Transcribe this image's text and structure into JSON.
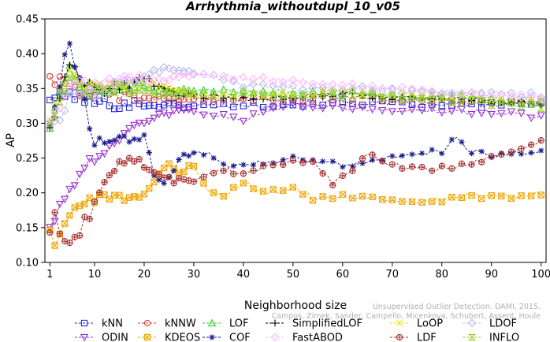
{
  "chart_data": {
    "type": "line",
    "title": "Arrhythmia_withoutdupl_10_v05",
    "xlabel": "Neighborhood size",
    "ylabel": "AP",
    "xlim": [
      0,
      101
    ],
    "ylim": [
      0.1,
      0.45
    ],
    "x_ticks": [
      1,
      10,
      20,
      30,
      40,
      50,
      60,
      70,
      80,
      90,
      100
    ],
    "y_ticks": [
      0.1,
      0.15,
      0.2,
      0.25,
      0.3,
      0.35,
      0.4,
      0.45
    ],
    "x_tick_labels": [
      "1",
      "10",
      "20",
      "30",
      "40",
      "50",
      "60",
      "70",
      "80",
      "90",
      "100"
    ],
    "y_tick_labels": [
      "0.10",
      "0.15",
      "0.20",
      "0.25",
      "0.30",
      "0.35",
      "0.40",
      "0.45"
    ],
    "legend_position": "bottom",
    "series": [
      {
        "name": "kNN",
        "color": "#2b2bd6",
        "marker": "square",
        "keys": [
          [
            1,
            0.337
          ],
          [
            3,
            0.338
          ],
          [
            5,
            0.342
          ],
          [
            8,
            0.335
          ],
          [
            10,
            0.33
          ],
          [
            15,
            0.328
          ],
          [
            20,
            0.327
          ],
          [
            30,
            0.325
          ],
          [
            40,
            0.326
          ],
          [
            50,
            0.328
          ],
          [
            60,
            0.33
          ],
          [
            70,
            0.328
          ],
          [
            80,
            0.325
          ],
          [
            90,
            0.327
          ],
          [
            100,
            0.328
          ]
        ]
      },
      {
        "name": "kNNW",
        "color": "#d63a3a",
        "marker": "circle",
        "keys": [
          [
            1,
            0.365
          ],
          [
            3,
            0.36
          ],
          [
            5,
            0.352
          ],
          [
            8,
            0.345
          ],
          [
            10,
            0.34
          ],
          [
            15,
            0.338
          ],
          [
            20,
            0.336
          ],
          [
            30,
            0.334
          ],
          [
            40,
            0.335
          ],
          [
            50,
            0.336
          ],
          [
            60,
            0.337
          ],
          [
            70,
            0.336
          ],
          [
            80,
            0.334
          ],
          [
            90,
            0.332
          ],
          [
            100,
            0.33
          ]
        ]
      },
      {
        "name": "LOF",
        "color": "#33cc33",
        "marker": "triangle-up",
        "keys": [
          [
            1,
            0.3
          ],
          [
            3,
            0.34
          ],
          [
            5,
            0.375
          ],
          [
            8,
            0.355
          ],
          [
            10,
            0.35
          ],
          [
            15,
            0.352
          ],
          [
            20,
            0.35
          ],
          [
            30,
            0.345
          ],
          [
            40,
            0.346
          ],
          [
            50,
            0.345
          ],
          [
            60,
            0.344
          ],
          [
            70,
            0.34
          ],
          [
            80,
            0.338
          ],
          [
            90,
            0.334
          ],
          [
            100,
            0.33
          ]
        ]
      },
      {
        "name": "SimplifiedLOF",
        "color": "#000000",
        "marker": "plus",
        "keys": [
          [
            1,
            0.295
          ],
          [
            3,
            0.33
          ],
          [
            5,
            0.39
          ],
          [
            8,
            0.355
          ],
          [
            10,
            0.348
          ],
          [
            15,
            0.352
          ],
          [
            20,
            0.365
          ],
          [
            25,
            0.345
          ],
          [
            30,
            0.338
          ],
          [
            40,
            0.335
          ],
          [
            50,
            0.338
          ],
          [
            60,
            0.342
          ],
          [
            70,
            0.338
          ],
          [
            80,
            0.336
          ],
          [
            90,
            0.332
          ],
          [
            100,
            0.328
          ]
        ]
      },
      {
        "name": "LoOP",
        "color": "#e6e600",
        "marker": "x",
        "keys": [
          [
            1,
            0.3
          ],
          [
            3,
            0.345
          ],
          [
            5,
            0.38
          ],
          [
            8,
            0.35
          ],
          [
            10,
            0.352
          ],
          [
            15,
            0.355
          ],
          [
            20,
            0.36
          ],
          [
            30,
            0.34
          ],
          [
            40,
            0.34
          ],
          [
            50,
            0.342
          ],
          [
            60,
            0.345
          ],
          [
            70,
            0.342
          ],
          [
            80,
            0.338
          ],
          [
            90,
            0.334
          ],
          [
            100,
            0.332
          ]
        ]
      },
      {
        "name": "LDOF",
        "color": "#b8b8f0",
        "marker": "diamond",
        "keys": [
          [
            1,
            0.305
          ],
          [
            3,
            0.3
          ],
          [
            5,
            0.345
          ],
          [
            8,
            0.34
          ],
          [
            10,
            0.345
          ],
          [
            15,
            0.36
          ],
          [
            20,
            0.37
          ],
          [
            25,
            0.38
          ],
          [
            30,
            0.375
          ],
          [
            35,
            0.365
          ],
          [
            40,
            0.355
          ],
          [
            50,
            0.35
          ],
          [
            60,
            0.35
          ],
          [
            70,
            0.348
          ],
          [
            80,
            0.345
          ],
          [
            90,
            0.342
          ],
          [
            100,
            0.34
          ]
        ]
      },
      {
        "name": "ODIN",
        "color": "#9933cc",
        "marker": "triangle-down",
        "keys": [
          [
            1,
            0.15
          ],
          [
            3,
            0.18
          ],
          [
            5,
            0.205
          ],
          [
            7,
            0.225
          ],
          [
            10,
            0.25
          ],
          [
            13,
            0.265
          ],
          [
            16,
            0.28
          ],
          [
            20,
            0.3
          ],
          [
            25,
            0.315
          ],
          [
            30,
            0.32
          ],
          [
            35,
            0.31
          ],
          [
            40,
            0.305
          ],
          [
            45,
            0.318
          ],
          [
            50,
            0.325
          ],
          [
            60,
            0.322
          ],
          [
            70,
            0.32
          ],
          [
            80,
            0.318
          ],
          [
            90,
            0.315
          ],
          [
            100,
            0.31
          ]
        ]
      },
      {
        "name": "KDEOS",
        "color": "#f0a500",
        "marker": "square-x",
        "keys": [
          [
            1,
            0.14
          ],
          [
            2,
            0.12
          ],
          [
            4,
            0.155
          ],
          [
            6,
            0.175
          ],
          [
            8,
            0.18
          ],
          [
            10,
            0.19
          ],
          [
            12,
            0.2
          ],
          [
            15,
            0.195
          ],
          [
            18,
            0.19
          ],
          [
            20,
            0.195
          ],
          [
            23,
            0.225
          ],
          [
            25,
            0.24
          ],
          [
            27,
            0.23
          ],
          [
            30,
            0.24
          ],
          [
            33,
            0.2
          ],
          [
            36,
            0.195
          ],
          [
            40,
            0.215
          ],
          [
            45,
            0.2
          ],
          [
            50,
            0.205
          ],
          [
            55,
            0.19
          ],
          [
            60,
            0.195
          ],
          [
            65,
            0.195
          ],
          [
            70,
            0.19
          ],
          [
            75,
            0.185
          ],
          [
            80,
            0.19
          ],
          [
            85,
            0.195
          ],
          [
            90,
            0.195
          ],
          [
            95,
            0.195
          ],
          [
            100,
            0.2
          ]
        ]
      },
      {
        "name": "COF",
        "color": "#1a1a8c",
        "marker": "star",
        "keys": [
          [
            1,
            0.3
          ],
          [
            3,
            0.35
          ],
          [
            4,
            0.395
          ],
          [
            5,
            0.41
          ],
          [
            7,
            0.36
          ],
          [
            9,
            0.3
          ],
          [
            10,
            0.27
          ],
          [
            13,
            0.275
          ],
          [
            16,
            0.28
          ],
          [
            18,
            0.275
          ],
          [
            20,
            0.285
          ],
          [
            22,
            0.225
          ],
          [
            24,
            0.21
          ],
          [
            26,
            0.235
          ],
          [
            28,
            0.255
          ],
          [
            31,
            0.26
          ],
          [
            35,
            0.25
          ],
          [
            38,
            0.235
          ],
          [
            40,
            0.24
          ],
          [
            45,
            0.245
          ],
          [
            50,
            0.25
          ],
          [
            55,
            0.245
          ],
          [
            60,
            0.24
          ],
          [
            65,
            0.245
          ],
          [
            70,
            0.25
          ],
          [
            75,
            0.255
          ],
          [
            80,
            0.26
          ],
          [
            83,
            0.28
          ],
          [
            85,
            0.26
          ],
          [
            90,
            0.255
          ],
          [
            95,
            0.258
          ],
          [
            100,
            0.26
          ]
        ]
      },
      {
        "name": "FastABOD",
        "color": "#ffb3ff",
        "marker": "diamond",
        "keys": [
          [
            1,
            0.3
          ],
          [
            3,
            0.32
          ],
          [
            5,
            0.35
          ],
          [
            8,
            0.355
          ],
          [
            10,
            0.358
          ],
          [
            15,
            0.36
          ],
          [
            20,
            0.362
          ],
          [
            25,
            0.365
          ],
          [
            30,
            0.37
          ],
          [
            35,
            0.368
          ],
          [
            40,
            0.365
          ],
          [
            50,
            0.36
          ],
          [
            60,
            0.355
          ],
          [
            70,
            0.35
          ],
          [
            80,
            0.345
          ],
          [
            90,
            0.34
          ],
          [
            100,
            0.338
          ]
        ]
      },
      {
        "name": "LDF",
        "color": "#a83232",
        "marker": "circle-plus",
        "keys": [
          [
            1,
            0.15
          ],
          [
            2,
            0.17
          ],
          [
            3,
            0.14
          ],
          [
            5,
            0.135
          ],
          [
            7,
            0.145
          ],
          [
            9,
            0.17
          ],
          [
            11,
            0.2
          ],
          [
            13,
            0.23
          ],
          [
            15,
            0.24
          ],
          [
            17,
            0.25
          ],
          [
            19,
            0.245
          ],
          [
            21,
            0.235
          ],
          [
            24,
            0.225
          ],
          [
            26,
            0.215
          ],
          [
            28,
            0.22
          ],
          [
            30,
            0.215
          ],
          [
            33,
            0.23
          ],
          [
            36,
            0.235
          ],
          [
            40,
            0.225
          ],
          [
            45,
            0.24
          ],
          [
            50,
            0.245
          ],
          [
            55,
            0.24
          ],
          [
            58,
            0.215
          ],
          [
            62,
            0.23
          ],
          [
            65,
            0.255
          ],
          [
            70,
            0.24
          ],
          [
            75,
            0.235
          ],
          [
            80,
            0.235
          ],
          [
            85,
            0.24
          ],
          [
            90,
            0.25
          ],
          [
            95,
            0.26
          ],
          [
            100,
            0.275
          ]
        ]
      },
      {
        "name": "INFLO",
        "color": "#99cc33",
        "marker": "hourglass",
        "keys": [
          [
            1,
            0.3
          ],
          [
            3,
            0.33
          ],
          [
            5,
            0.37
          ],
          [
            8,
            0.35
          ],
          [
            10,
            0.345
          ],
          [
            15,
            0.35
          ],
          [
            20,
            0.348
          ],
          [
            30,
            0.34
          ],
          [
            40,
            0.34
          ],
          [
            50,
            0.34
          ],
          [
            60,
            0.34
          ],
          [
            70,
            0.336
          ],
          [
            80,
            0.332
          ],
          [
            90,
            0.328
          ],
          [
            100,
            0.325
          ]
        ]
      }
    ]
  },
  "watermark": {
    "line1": "Unsupervised Outlier Detection. DAMI, 2015.",
    "line2": "Campos, Zimek, Sander, Campello, Micenkova, Schubert, Assent, Houle"
  }
}
